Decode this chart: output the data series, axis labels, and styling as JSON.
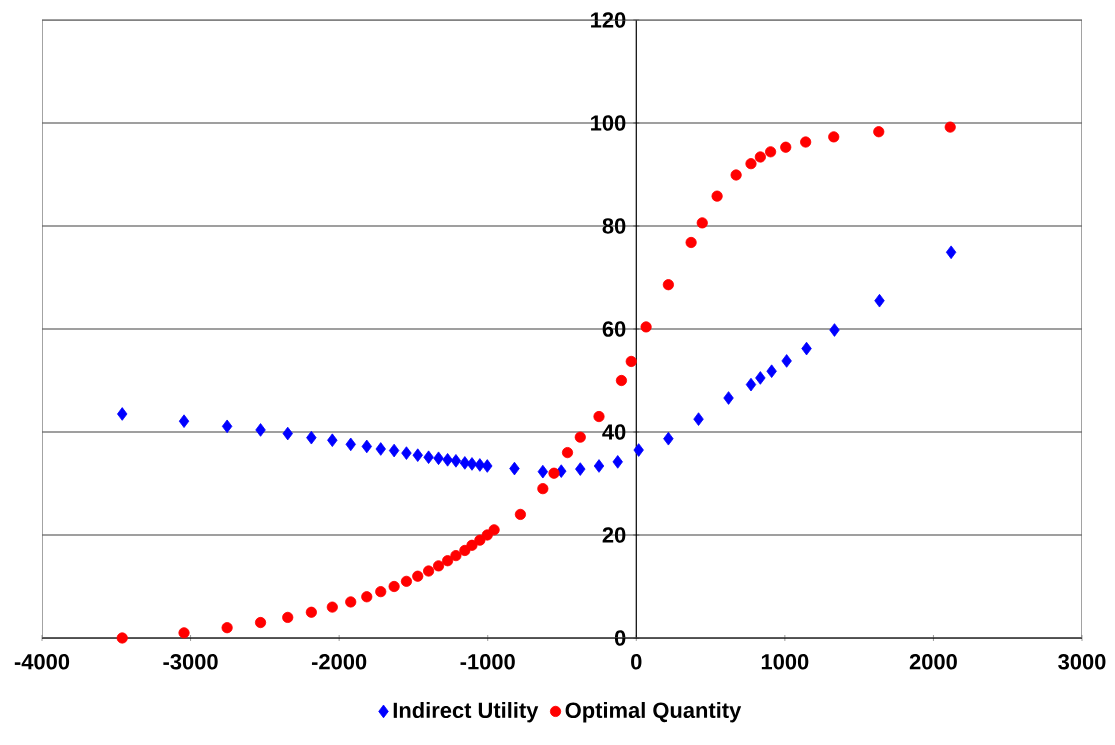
{
  "chart_data": {
    "type": "scatter",
    "xlim": [
      -4000,
      3000
    ],
    "xticks": [
      -4000,
      -3000,
      -2000,
      -1000,
      0,
      1000,
      2000,
      3000
    ],
    "ylim": [
      0,
      120
    ],
    "yticks": [
      0,
      20,
      40,
      60,
      80,
      100,
      120
    ],
    "grid": "y",
    "legend": "bottom",
    "series": [
      {
        "name": "Indirect Utility",
        "color": "#0000ff",
        "marker": "diamond",
        "x": [
          -3460,
          -3044,
          -2754,
          -2529,
          -2346,
          -2187,
          -2046,
          -1922,
          -1814,
          -1720,
          -1630,
          -1547,
          -1471,
          -1398,
          -1331,
          -1270,
          -1214,
          -1154,
          -1106,
          -1053,
          -1003,
          -820,
          -629,
          -505,
          -377,
          -251,
          -125,
          16,
          216,
          419,
          621,
          772,
          835,
          911,
          1012,
          1146,
          1334,
          1637,
          2119
        ],
        "values": [
          43.5,
          42.1,
          41.1,
          40.4,
          39.7,
          38.9,
          38.4,
          37.6,
          37.2,
          36.7,
          36.4,
          35.9,
          35.5,
          35.1,
          34.9,
          34.6,
          34.4,
          34.0,
          33.8,
          33.6,
          33.4,
          32.9,
          32.3,
          32.4,
          32.8,
          33.4,
          34.2,
          36.5,
          38.7,
          42.5,
          46.6,
          49.2,
          50.5,
          51.8,
          53.8,
          56.2,
          59.8,
          65.5,
          74.9
        ]
      },
      {
        "name": "Optimal Quantity",
        "color": "#ff0000",
        "marker": "circle",
        "x": [
          -3460,
          -3044,
          -2754,
          -2529,
          -2346,
          -2187,
          -2046,
          -1922,
          -1814,
          -1720,
          -1630,
          -1547,
          -1471,
          -1398,
          -1331,
          -1270,
          -1214,
          -1154,
          -1106,
          -1053,
          -1003,
          -957,
          -780,
          -629,
          -554,
          -463,
          -377,
          -251,
          -100,
          -34,
          66,
          216,
          369,
          444,
          544,
          672,
          772,
          835,
          904,
          1006,
          1140,
          1329,
          1632,
          2113
        ],
        "values": [
          0,
          1,
          2,
          3,
          4,
          5,
          6,
          7,
          8,
          9,
          10,
          11,
          12,
          13,
          14,
          15,
          16,
          17,
          18,
          19,
          20,
          21,
          24,
          29,
          32,
          36,
          39,
          43,
          50,
          53.7,
          60.4,
          68.6,
          76.8,
          80.6,
          85.8,
          89.9,
          92.1,
          93.4,
          94.4,
          95.3,
          96.3,
          97.3,
          98.3,
          99.2
        ]
      }
    ]
  }
}
